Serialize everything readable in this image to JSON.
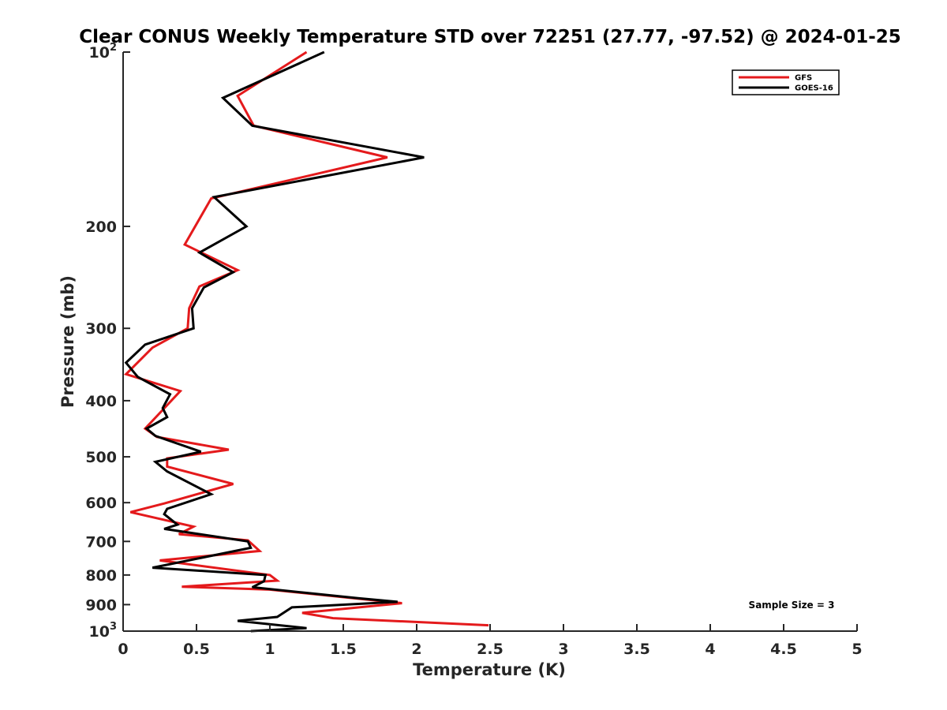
{
  "chart_data": {
    "type": "line",
    "title": "Clear CONUS Weekly Temperature STD over 72251 (27.77, -97.52) @ 2024-01-25",
    "xlabel": "Temperature (K)",
    "ylabel": "Pressure (mb)",
    "xlim": [
      0,
      5
    ],
    "ylim": [
      100,
      1000
    ],
    "y_scale": "log",
    "y_reversed": true,
    "x_ticks": [
      0,
      0.5,
      1,
      1.5,
      2,
      2.5,
      3,
      3.5,
      4,
      4.5,
      5
    ],
    "x_tick_labels": [
      "0",
      "0.5",
      "1",
      "1.5",
      "2",
      "2.5",
      "3",
      "3.5",
      "4",
      "4.5",
      "5"
    ],
    "y_ticks": [
      {
        "value": 100,
        "base": "10",
        "exp": "2"
      },
      {
        "value": 200,
        "text": "200"
      },
      {
        "value": 300,
        "text": "300"
      },
      {
        "value": 400,
        "text": "400"
      },
      {
        "value": 500,
        "text": "500"
      },
      {
        "value": 600,
        "text": "600"
      },
      {
        "value": 700,
        "text": "700"
      },
      {
        "value": 800,
        "text": "800"
      },
      {
        "value": 900,
        "text": "900"
      },
      {
        "value": 1000,
        "base": "10",
        "exp": "3"
      }
    ],
    "grid": false,
    "legend_position": "top-right",
    "series": [
      {
        "name": "GFS",
        "color": "#e41a1c",
        "points": [
          [
            1.25,
            100
          ],
          [
            0.78,
            119
          ],
          [
            0.89,
            134
          ],
          [
            1.8,
            152
          ],
          [
            0.6,
            179
          ],
          [
            0.42,
            215
          ],
          [
            0.78,
            238
          ],
          [
            0.52,
            254
          ],
          [
            0.45,
            277
          ],
          [
            0.44,
            300
          ],
          [
            0.2,
            324
          ],
          [
            0.02,
            360
          ],
          [
            0.39,
            385
          ],
          [
            0.25,
            420
          ],
          [
            0.15,
            447
          ],
          [
            0.23,
            462
          ],
          [
            0.72,
            486
          ],
          [
            0.3,
            503
          ],
          [
            0.3,
            520
          ],
          [
            0.75,
            557
          ],
          [
            0.28,
            602
          ],
          [
            0.05,
            623
          ],
          [
            0.48,
            660
          ],
          [
            0.38,
            680
          ],
          [
            0.85,
            697
          ],
          [
            0.93,
            727
          ],
          [
            0.25,
            755
          ],
          [
            1.0,
            800
          ],
          [
            1.05,
            818
          ],
          [
            0.4,
            838
          ],
          [
            1.0,
            848
          ],
          [
            1.9,
            895
          ],
          [
            1.22,
            930
          ],
          [
            1.43,
            950
          ],
          [
            2.49,
            977
          ]
        ]
      },
      {
        "name": "GOES-16",
        "color": "#000000",
        "points": [
          [
            1.37,
            100
          ],
          [
            0.68,
            120
          ],
          [
            0.88,
            134
          ],
          [
            2.05,
            152
          ],
          [
            0.62,
            178
          ],
          [
            0.84,
            200
          ],
          [
            0.52,
            222
          ],
          [
            0.75,
            240
          ],
          [
            0.55,
            255
          ],
          [
            0.47,
            277
          ],
          [
            0.48,
            300
          ],
          [
            0.15,
            320
          ],
          [
            0.02,
            344
          ],
          [
            0.1,
            364
          ],
          [
            0.32,
            390
          ],
          [
            0.27,
            412
          ],
          [
            0.3,
            427
          ],
          [
            0.16,
            447
          ],
          [
            0.22,
            460
          ],
          [
            0.53,
            490
          ],
          [
            0.22,
            510
          ],
          [
            0.3,
            530
          ],
          [
            0.6,
            580
          ],
          [
            0.3,
            615
          ],
          [
            0.28,
            628
          ],
          [
            0.37,
            655
          ],
          [
            0.28,
            666
          ],
          [
            0.85,
            700
          ],
          [
            0.87,
            718
          ],
          [
            0.2,
            777
          ],
          [
            0.97,
            800
          ],
          [
            0.96,
            820
          ],
          [
            0.88,
            840
          ],
          [
            1.6,
            877
          ],
          [
            1.87,
            890
          ],
          [
            1.15,
            910
          ],
          [
            1.05,
            945
          ],
          [
            0.78,
            960
          ],
          [
            1.25,
            988
          ],
          [
            0.87,
            1000
          ]
        ]
      }
    ],
    "annotations": [
      "Sample Size = 3"
    ]
  }
}
